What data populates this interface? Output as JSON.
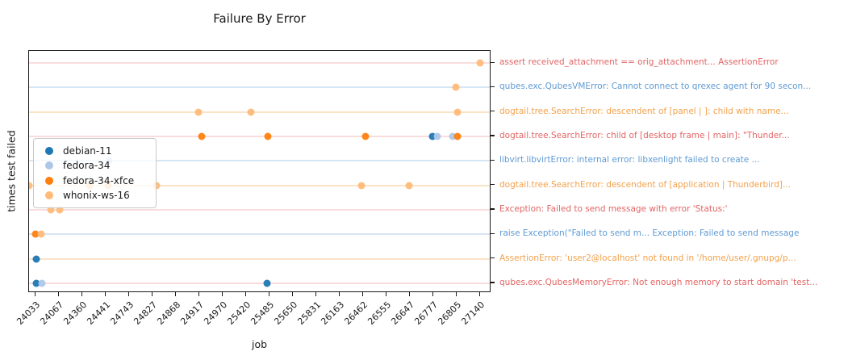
{
  "chart_data": {
    "type": "scatter",
    "title": "Failure By Error",
    "xlabel": "job",
    "ylabel": "times test failed",
    "grid": "horizontal category lines",
    "legend_position": "center left inside plot",
    "x_categories": [
      "24033",
      "24067",
      "24360",
      "24441",
      "24743",
      "24827",
      "24868",
      "24917",
      "24970",
      "25420",
      "25485",
      "25650",
      "25831",
      "26163",
      "26462",
      "26555",
      "26647",
      "26777",
      "26805",
      "27140"
    ],
    "y_categories": [
      "assert received_attachment == orig_attachment... AssertionError",
      "qubes.exc.QubesVMError: Cannot connect to qrexec agent for 90 secon...",
      "dogtail.tree.SearchError: descendent of [panel | ]: child with name...",
      "dogtail.tree.SearchError: child of [desktop frame | main]: \"Thunder...",
      "libvirt.libvirtError: internal error: libxenlight failed to create ...",
      "dogtail.tree.SearchError: descendent of [application | Thunderbird]...",
      "Exception: Failed to send message with error 'Status:'",
      "raise Exception(\"Failed to send m... Exception: Failed to send message",
      "AssertionError: 'user2@localhost' not found in '/home/user/.gnupg/p...",
      "qubes.exc.QubesMemoryError: Not enough memory to start domain 'test..."
    ],
    "y_label_color_roles": [
      "red",
      "blue",
      "orange",
      "red",
      "blue",
      "orange",
      "red",
      "blue",
      "orange",
      "red"
    ],
    "palette": {
      "red": "#e26565",
      "blue": "#5f9ad3",
      "orange": "#f3a14a",
      "red_line": "rgba(226,101,101,0.22)",
      "blue_line": "rgba(95,154,211,0.25)",
      "orange_line": "rgba(243,161,74,0.3)"
    },
    "series": [
      {
        "name": "debian-11",
        "color": "#1f77b4",
        "points": [
          {
            "job": "26777",
            "row": 3,
            "dx": -1
          },
          {
            "job": "24033",
            "row": 8,
            "dx": 1
          },
          {
            "job": "24033",
            "row": 9,
            "dx": 1
          },
          {
            "job": "25485",
            "row": 9,
            "dx": -3
          }
        ]
      },
      {
        "name": "fedora-34",
        "color": "#aec7e8",
        "points": [
          {
            "job": "26777",
            "row": 3,
            "dx": 5
          },
          {
            "job": "26805",
            "row": 3,
            "dx": -5
          },
          {
            "job": "24441",
            "row": 4,
            "dx": 4
          },
          {
            "job": "24033",
            "row": 9,
            "dx": 8
          }
        ]
      },
      {
        "name": "fedora-34-xfce",
        "color": "#ff7f0e",
        "points": [
          {
            "job": "24917",
            "row": 3,
            "dx": 3
          },
          {
            "job": "25485",
            "row": 3,
            "dx": -2
          },
          {
            "job": "26462",
            "row": 3,
            "dx": 3
          },
          {
            "job": "26805",
            "row": 3,
            "dx": 1
          },
          {
            "job": "24033",
            "row": 7,
            "dx": 0
          }
        ]
      },
      {
        "name": "whonix-ws-16",
        "color": "#ffbb78",
        "points": [
          {
            "job": "27140",
            "row": 0,
            "dx": 0
          },
          {
            "job": "26805",
            "row": 1,
            "dx": -1
          },
          {
            "job": "24917",
            "row": 2,
            "dx": -1
          },
          {
            "job": "25420",
            "row": 2,
            "dx": 6
          },
          {
            "job": "26805",
            "row": 2,
            "dx": 1
          },
          {
            "job": "24033",
            "row": 5,
            "dx": -8
          },
          {
            "job": "24360",
            "row": 5,
            "dx": 9
          },
          {
            "job": "24441",
            "row": 5,
            "dx": 3
          },
          {
            "job": "24827",
            "row": 5,
            "dx": 5
          },
          {
            "job": "26462",
            "row": 5,
            "dx": -2
          },
          {
            "job": "26647",
            "row": 5,
            "dx": -1
          },
          {
            "job": "24067",
            "row": 6,
            "dx": -10
          },
          {
            "job": "24067",
            "row": 6,
            "dx": 1
          },
          {
            "job": "24033",
            "row": 7,
            "dx": 7
          }
        ]
      }
    ]
  }
}
